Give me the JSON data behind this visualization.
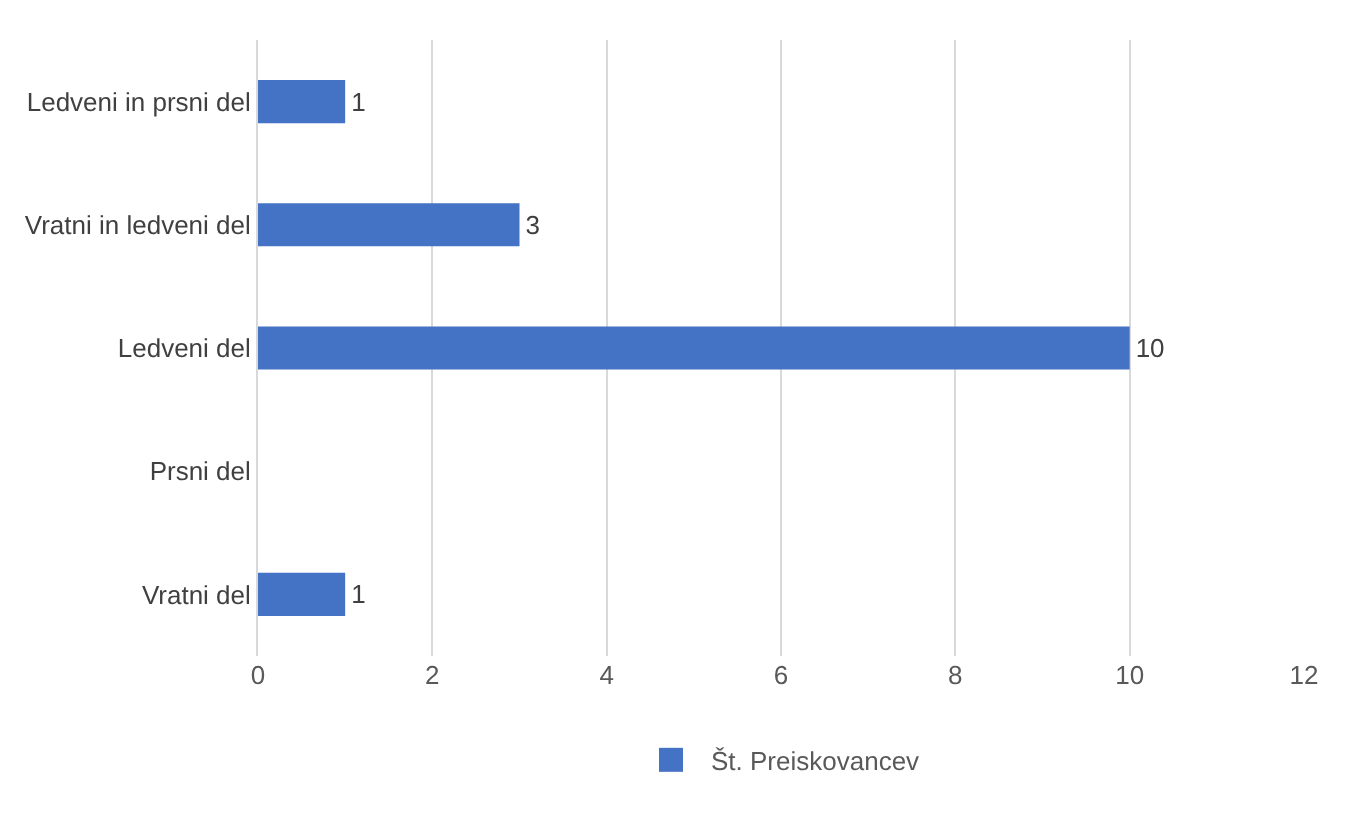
{
  "chart_data": {
    "type": "bar",
    "orientation": "horizontal",
    "categories": [
      "Ledveni in prsni del",
      "Vratni in ledveni del",
      "Ledveni del",
      "Prsni del",
      "Vratni del"
    ],
    "series": [
      {
        "name": "Št. Preiskovancev",
        "color": "#4472c4",
        "values": [
          1,
          3,
          10,
          null,
          1
        ]
      }
    ],
    "xlim": [
      0,
      12
    ],
    "xticks": [
      0,
      2,
      4,
      6,
      8,
      10,
      12
    ],
    "grid": "x",
    "legend": "bottom",
    "data_labels": true
  }
}
